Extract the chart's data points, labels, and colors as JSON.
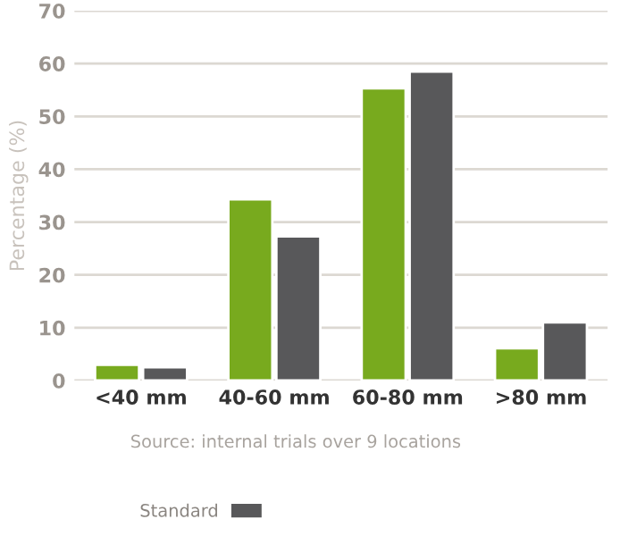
{
  "chart_data": {
    "type": "bar",
    "ylabel": "Percentage (%)",
    "categories": [
      "<40 mm",
      "40-60 mm",
      "60-80 mm",
      ">80 mm"
    ],
    "series": [
      {
        "color": "#78aa1e",
        "values": [
          3.0,
          34.3,
          55.3,
          6.1
        ]
      },
      {
        "name": "Standard",
        "color": "#58585a",
        "values": [
          2.5,
          27.3,
          58.5,
          11.0
        ]
      }
    ],
    "ylim": [
      0,
      70
    ],
    "yticks": [
      0,
      10,
      20,
      30,
      40,
      50,
      60,
      70
    ],
    "grid": "y",
    "legend": "bottom left",
    "annotations": [
      "Source: internal trials over 9 locations"
    ]
  }
}
